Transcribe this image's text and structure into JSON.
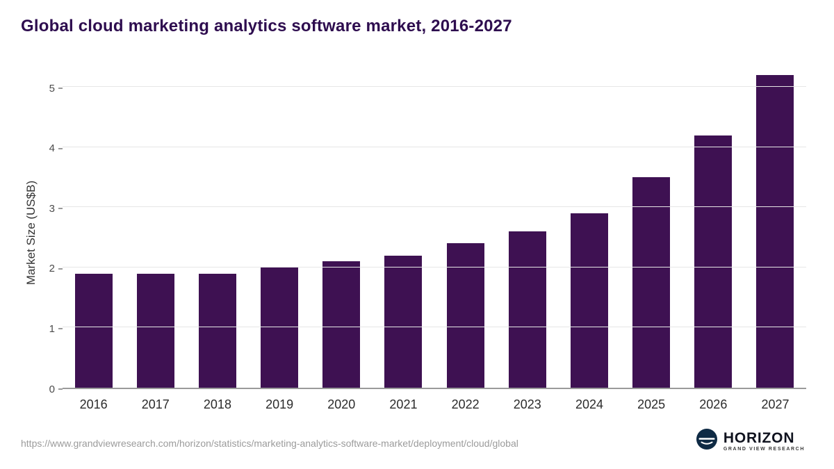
{
  "chart_data": {
    "type": "bar",
    "title": "Global cloud marketing analytics software market, 2016-2027",
    "categories": [
      "2016",
      "2017",
      "2018",
      "2019",
      "2020",
      "2021",
      "2022",
      "2023",
      "2024",
      "2025",
      "2026",
      "2027"
    ],
    "values": [
      1.9,
      1.9,
      1.9,
      2.0,
      2.1,
      2.2,
      2.4,
      2.6,
      2.9,
      3.5,
      4.2,
      5.2
    ],
    "xlabel": "",
    "ylabel": "Market Size (US$B)",
    "ylim": [
      0,
      5.2
    ],
    "yticks": [
      0,
      1,
      2,
      3,
      4,
      5
    ],
    "grid": true,
    "legend": "none",
    "bar_color": "#3e1152"
  },
  "footer": {
    "source_url": "https://www.grandviewresearch.com/horizon/statistics/marketing-analytics-software-market/deployment/cloud/global",
    "logo": {
      "brand": "HORIZON",
      "sub_brand": "GRAND VIEW RESEARCH",
      "icon": "horizon-globe-icon",
      "icon_color": "#0e2a44"
    }
  },
  "colors": {
    "title": "#2e0d4f",
    "bar": "#3e1152",
    "gridline": "#e6e6e6",
    "axis": "#9a9a9a",
    "source_text": "#9b9b9b",
    "background": "#ffffff"
  }
}
